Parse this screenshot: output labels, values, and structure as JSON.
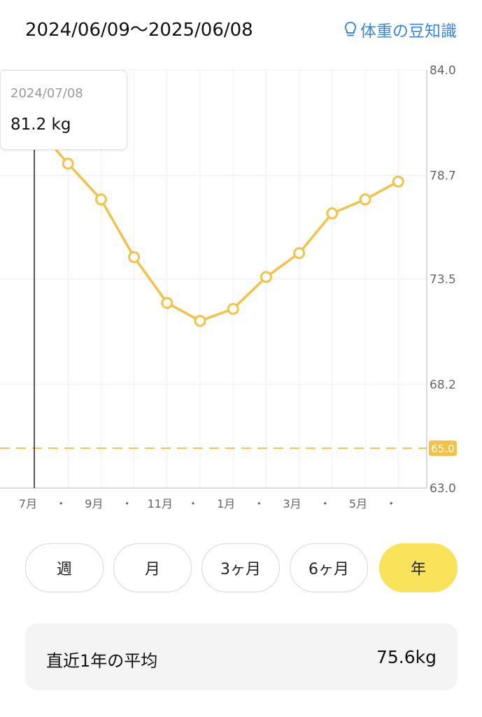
{
  "header": {
    "date_range": "2024/06/09〜2025/06/08",
    "tips_link": "体重の豆知識"
  },
  "tooltip": {
    "date": "2024/07/08",
    "value": "81.2 kg"
  },
  "chart_data": {
    "type": "line",
    "title": "",
    "xlabel": "",
    "ylabel": "",
    "ylim": [
      63.0,
      84.0
    ],
    "y_ticks": [
      "84.0",
      "78.7",
      "73.5",
      "68.2",
      "63.0"
    ],
    "x_tick_labels": [
      "7月",
      "・",
      "9月",
      "・",
      "11月",
      "・",
      "1月",
      "・",
      "3月",
      "・",
      "5月",
      "・"
    ],
    "series": [
      {
        "color": "#f2c24a",
        "x": [
          "2024/07",
          "2024/08",
          "2024/09",
          "2024/10",
          "2024/11",
          "2024/12",
          "2025/01",
          "2025/02",
          "2025/03",
          "2025/04",
          "2025/05",
          "2025/06"
        ],
        "values": [
          81.2,
          79.3,
          77.5,
          74.6,
          72.3,
          71.4,
          72.0,
          73.6,
          74.8,
          76.8,
          77.5,
          78.4
        ]
      }
    ],
    "goal_line": {
      "value": 65.0,
      "label": "65.0",
      "color": "#f2c24a"
    },
    "grid": true,
    "cursor": "2024/07/08"
  },
  "period_tabs": [
    "週",
    "月",
    "3ヶ月",
    "6ヶ月",
    "年"
  ],
  "active_tab": "年",
  "average": {
    "label": "直近1年の平均",
    "value": "75.6kg"
  }
}
